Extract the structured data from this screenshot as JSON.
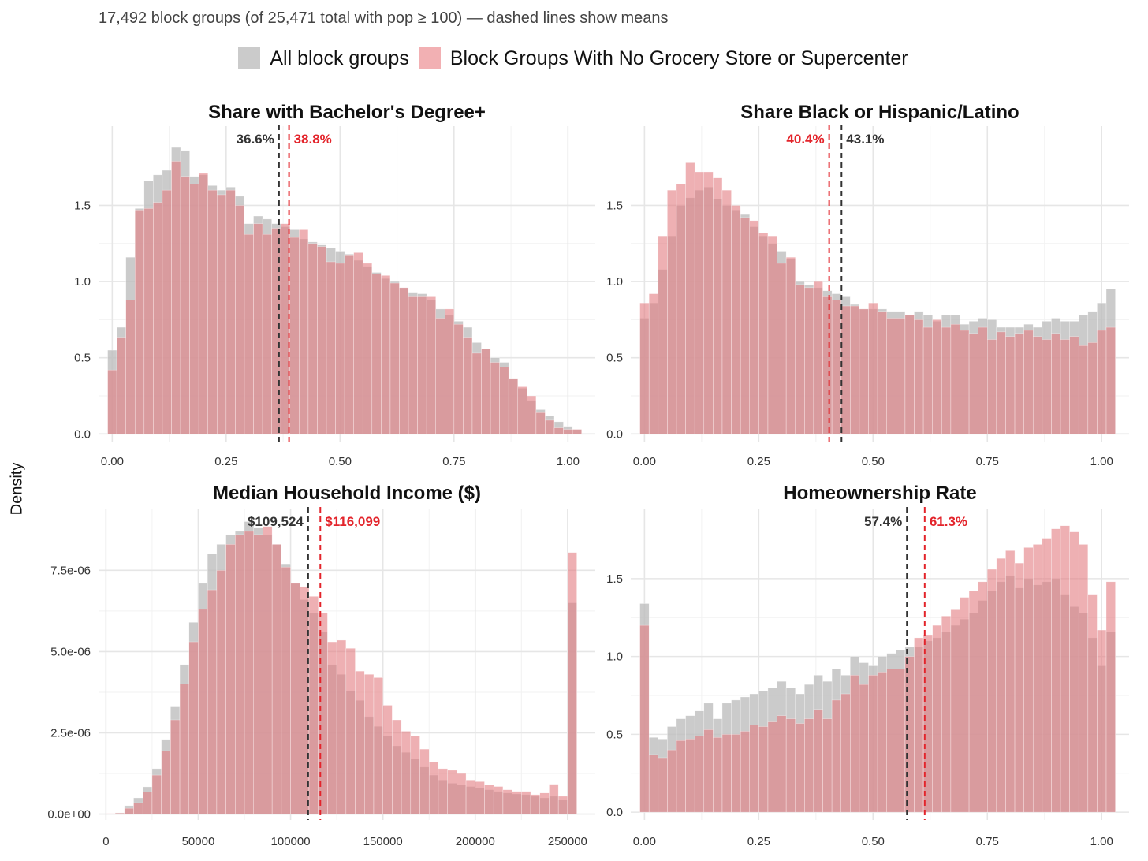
{
  "subtitle": "17,492 block groups (of 25,471 total with pop ≥ 100) — dashed lines show means",
  "y_axis_label": "Density",
  "legend": [
    {
      "label": "All block groups",
      "color": "#bdbdbd"
    },
    {
      "label": "Block Groups With No Grocery Store or Supercenter",
      "color": "#ef9a9e"
    }
  ],
  "colors": {
    "all_fill": "#bdbdbd",
    "nogrocery_fill": "#e27b80",
    "all_mean": "#333333",
    "nogrocery_mean": "#e3242b",
    "grid": "#e6e6e6"
  },
  "chart_data": [
    {
      "type": "histogram",
      "title": "Share with Bachelor's Degree+",
      "x_start": 0.0,
      "bin_width": 0.02,
      "xlim": [
        -0.03,
        1.06
      ],
      "ylim": [
        -0.05,
        2.02
      ],
      "x_ticks": [
        0,
        0.25,
        0.5,
        0.75,
        1
      ],
      "x_tick_labels": [
        "0.00",
        "0.25",
        "0.50",
        "0.75",
        "1.00"
      ],
      "y_ticks": [
        0,
        0.5,
        1,
        1.5
      ],
      "y_tick_labels": [
        "0.0",
        "0.5",
        "1.0",
        "1.5"
      ],
      "series": [
        {
          "name": "All block groups",
          "values": [
            0.55,
            0.7,
            1.16,
            1.48,
            1.66,
            1.7,
            1.73,
            1.88,
            1.86,
            1.69,
            1.7,
            1.63,
            1.6,
            1.62,
            1.56,
            1.38,
            1.43,
            1.41,
            1.38,
            1.36,
            1.34,
            1.28,
            1.26,
            1.24,
            1.22,
            1.2,
            1.18,
            1.14,
            1.1,
            1.06,
            1.02,
            1.0,
            0.96,
            0.93,
            0.92,
            0.88,
            0.82,
            0.78,
            0.74,
            0.7,
            0.6,
            0.56,
            0.5,
            0.47,
            0.36,
            0.3,
            0.22,
            0.16,
            0.12,
            0.08,
            0.05,
            0.03
          ]
        },
        {
          "name": "Block Groups With No Grocery Store or Supercenter",
          "values": [
            0.42,
            0.63,
            0.88,
            1.47,
            1.48,
            1.52,
            1.6,
            1.79,
            1.69,
            1.64,
            1.71,
            1.6,
            1.57,
            1.6,
            1.5,
            1.31,
            1.38,
            1.31,
            1.35,
            1.38,
            1.29,
            1.34,
            1.25,
            1.23,
            1.13,
            1.12,
            1.17,
            1.19,
            1.12,
            1.05,
            1.04,
            0.99,
            0.96,
            0.9,
            0.9,
            0.9,
            0.76,
            0.82,
            0.72,
            0.63,
            0.53,
            0.56,
            0.47,
            0.44,
            0.36,
            0.31,
            0.25,
            0.14,
            0.09,
            0.04,
            0.03,
            0.03
          ]
        }
      ],
      "means": [
        {
          "series": "All block groups",
          "value": 0.366,
          "label": "36.6%",
          "side": "left"
        },
        {
          "series": "Block Groups With No Grocery Store or Supercenter",
          "value": 0.388,
          "label": "38.8%",
          "side": "right"
        }
      ]
    },
    {
      "type": "histogram",
      "title": "Share Black or Hispanic/Latino",
      "x_start": 0.0,
      "bin_width": 0.02,
      "xlim": [
        -0.03,
        1.06
      ],
      "ylim": [
        -0.05,
        2.02
      ],
      "x_ticks": [
        0,
        0.25,
        0.5,
        0.75,
        1
      ],
      "x_tick_labels": [
        "0.00",
        "0.25",
        "0.50",
        "0.75",
        "1.00"
      ],
      "y_ticks": [
        0,
        0.5,
        1,
        1.5
      ],
      "y_tick_labels": [
        "0.0",
        "0.5",
        "1.0",
        "1.5"
      ],
      "series": [
        {
          "name": "All block groups",
          "values": [
            0.76,
            0.86,
            1.08,
            1.3,
            1.5,
            1.55,
            1.6,
            1.62,
            1.54,
            1.5,
            1.47,
            1.44,
            1.36,
            1.3,
            1.25,
            1.2,
            1.15,
            1.0,
            0.98,
            0.96,
            0.94,
            0.92,
            0.9,
            0.85,
            0.82,
            0.82,
            0.82,
            0.8,
            0.8,
            0.78,
            0.8,
            0.78,
            0.74,
            0.78,
            0.78,
            0.72,
            0.74,
            0.76,
            0.75,
            0.7,
            0.7,
            0.7,
            0.72,
            0.7,
            0.74,
            0.76,
            0.74,
            0.74,
            0.78,
            0.8,
            0.86,
            0.95
          ]
        },
        {
          "name": "Block Groups With No Grocery Store or Supercenter",
          "values": [
            0.86,
            0.92,
            1.3,
            1.6,
            1.64,
            1.78,
            1.72,
            1.72,
            1.68,
            1.6,
            1.5,
            1.42,
            1.4,
            1.32,
            1.3,
            1.12,
            1.16,
            0.98,
            0.96,
            1.0,
            0.9,
            0.88,
            0.84,
            0.84,
            0.82,
            0.86,
            0.8,
            0.76,
            0.76,
            0.78,
            0.75,
            0.7,
            0.75,
            0.7,
            0.72,
            0.68,
            0.66,
            0.7,
            0.62,
            0.67,
            0.64,
            0.66,
            0.68,
            0.64,
            0.62,
            0.66,
            0.62,
            0.64,
            0.58,
            0.6,
            0.68,
            0.7
          ]
        }
      ],
      "means": [
        {
          "series": "All block groups",
          "value": 0.431,
          "label": "43.1%",
          "side": "right"
        },
        {
          "series": "Block Groups With No Grocery Store or Supercenter",
          "value": 0.404,
          "label": "40.4%",
          "side": "left"
        }
      ]
    },
    {
      "type": "histogram",
      "title": "Median Household Income ($)",
      "x_start": 2500,
      "bin_width": 5000,
      "xlim": [
        -4000,
        265000
      ],
      "ylim": [
        -1.8e-07,
        9.4e-06
      ],
      "x_ticks": [
        0,
        50000,
        100000,
        150000,
        200000,
        250000
      ],
      "x_tick_labels": [
        "0",
        "50000",
        "100000",
        "150000",
        "200000",
        "250000"
      ],
      "y_ticks": [
        0,
        2.5e-06,
        5e-06,
        7.5e-06
      ],
      "y_tick_labels": [
        "0.0e+00",
        "2.5e-06",
        "5.0e-06",
        "7.5e-06"
      ],
      "series": [
        {
          "name": "All block groups",
          "values": [
            2e-08,
            4e-08,
            2.6e-07,
            5e-07,
            8.4e-07,
            1.4e-06,
            2.3e-06,
            3.3e-06,
            4.6e-06,
            5.9e-06,
            7.1e-06,
            8e-06,
            8.3e-06,
            8.6e-06,
            8.7e-06,
            9e-06,
            8.8e-06,
            8.6e-06,
            8.3e-06,
            7.7e-06,
            7.1e-06,
            6.6e-06,
            6.2e-06,
            5.6e-06,
            4.6e-06,
            4.3e-06,
            3.8e-06,
            3.5e-06,
            3e-06,
            2.7e-06,
            2.4e-06,
            2.1e-06,
            1.9e-06,
            1.7e-06,
            1.45e-06,
            1.2e-06,
            1.05e-06,
            9.5e-07,
            9e-07,
            8.5e-07,
            8e-07,
            7.5e-07,
            7e-07,
            6.5e-07,
            6.2e-07,
            6e-07,
            5.5e-07,
            5e-07,
            5.5e-07,
            4.5e-07,
            6.5e-06
          ]
        },
        {
          "name": "Block Groups With No Grocery Store or Supercenter",
          "values": [
            2e-08,
            3e-08,
            1.8e-07,
            3.5e-07,
            6.8e-07,
            1.2e-06,
            1.95e-06,
            2.9e-06,
            4e-06,
            5.3e-06,
            6.3e-06,
            6.9e-06,
            7.5e-06,
            8.3e-06,
            8.6e-06,
            8.7e-06,
            8.6e-06,
            8.85e-06,
            8.3e-06,
            7.6e-06,
            7.1e-06,
            7e-06,
            6.7e-06,
            6.2e-06,
            5.3e-06,
            5.35e-06,
            5.1e-06,
            4.4e-06,
            4.3e-06,
            4.2e-06,
            3.35e-06,
            2.9e-06,
            2.55e-06,
            2.4e-06,
            2e-06,
            1.6e-06,
            1.4e-06,
            1.35e-06,
            1.25e-06,
            1.05e-06,
            1e-06,
            9e-07,
            8.5e-07,
            7.5e-07,
            7e-07,
            7e-07,
            6e-07,
            6.5e-07,
            9.2e-07,
            5.5e-07,
            8.05e-06
          ]
        }
      ],
      "means": [
        {
          "series": "All block groups",
          "value": 109524,
          "label": "$109,524",
          "side": "left"
        },
        {
          "series": "Block Groups With No Grocery Store or Supercenter",
          "value": 116099,
          "label": "$116,099",
          "side": "right"
        }
      ]
    },
    {
      "type": "histogram",
      "title": "Homeownership Rate",
      "x_start": 0.0,
      "bin_width": 0.02,
      "xlim": [
        -0.03,
        1.06
      ],
      "ylim": [
        -0.05,
        1.95
      ],
      "x_ticks": [
        0,
        0.25,
        0.5,
        0.75,
        1
      ],
      "x_tick_labels": [
        "0.00",
        "0.25",
        "0.50",
        "0.75",
        "1.00"
      ],
      "y_ticks": [
        0,
        0.5,
        1,
        1.5
      ],
      "y_tick_labels": [
        "0.0",
        "0.5",
        "1.0",
        "1.5"
      ],
      "series": [
        {
          "name": "All block groups",
          "values": [
            1.34,
            0.48,
            0.47,
            0.55,
            0.6,
            0.62,
            0.65,
            0.7,
            0.6,
            0.7,
            0.72,
            0.74,
            0.76,
            0.78,
            0.8,
            0.84,
            0.8,
            0.76,
            0.82,
            0.88,
            0.84,
            0.92,
            0.88,
            1.0,
            0.96,
            0.94,
            1.0,
            1.02,
            1.04,
            1.06,
            1.06,
            1.1,
            1.12,
            1.16,
            1.2,
            1.24,
            1.28,
            1.36,
            1.42,
            1.48,
            1.52,
            1.44,
            1.5,
            1.46,
            1.48,
            1.5,
            1.4,
            1.32,
            1.28,
            1.12,
            0.94,
            1.16
          ]
        },
        {
          "name": "Block Groups With No Grocery Store or Supercenter",
          "values": [
            1.2,
            0.37,
            0.35,
            0.4,
            0.46,
            0.47,
            0.49,
            0.53,
            0.48,
            0.5,
            0.5,
            0.52,
            0.56,
            0.55,
            0.58,
            0.62,
            0.6,
            0.57,
            0.6,
            0.66,
            0.6,
            0.72,
            0.76,
            0.88,
            0.82,
            0.88,
            0.9,
            0.92,
            0.92,
            1.0,
            1.12,
            1.14,
            1.2,
            1.26,
            1.3,
            1.38,
            1.42,
            1.48,
            1.56,
            1.63,
            1.68,
            1.6,
            1.7,
            1.72,
            1.76,
            1.82,
            1.84,
            1.8,
            1.72,
            1.4,
            1.17,
            1.48
          ]
        }
      ],
      "means": [
        {
          "series": "All block groups",
          "value": 0.574,
          "label": "57.4%",
          "side": "left"
        },
        {
          "series": "Block Groups With No Grocery Store or Supercenter",
          "value": 0.613,
          "label": "61.3%",
          "side": "right"
        }
      ]
    }
  ]
}
